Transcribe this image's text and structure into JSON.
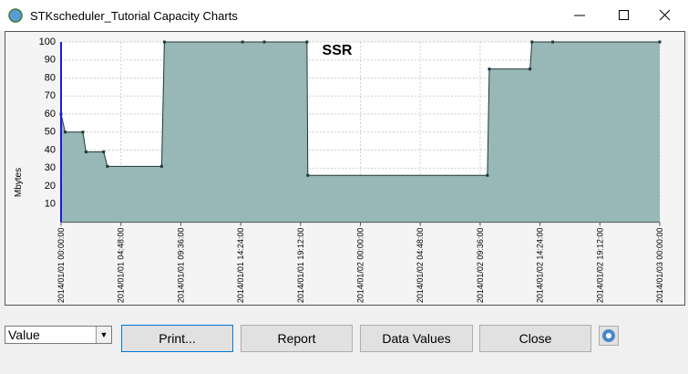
{
  "window": {
    "title": "STKscheduler_Tutorial Capacity Charts"
  },
  "chart_data": {
    "type": "area",
    "title": "SSR",
    "y_label": "Mbytes",
    "x": [
      "2014/01/01 00:00:00",
      "2014/01/01 00:20:00",
      "2014/01/01 01:45:00",
      "2014/01/01 02:00:00",
      "2014/01/01 03:25:00",
      "2014/01/01 03:43:00",
      "2014/01/01 08:04:00",
      "2014/01/01 08:17:00",
      "2014/01/01 14:33:00",
      "2014/01/01 16:18:00",
      "2014/01/01 19:43:00",
      "2014/01/01 19:47:00",
      "2014/01/02 10:11:00",
      "2014/01/02 10:20:00",
      "2014/01/02 13:36:00",
      "2014/01/02 13:45:00",
      "2014/01/02 15:25:00",
      "2014/01/03 00:00:00"
    ],
    "values": [
      60,
      50,
      50,
      39,
      39,
      31,
      31,
      100,
      100,
      100,
      100,
      26,
      26,
      85,
      85,
      100,
      100,
      100
    ],
    "color": "#97b8b6",
    "line_color": "#1e3836",
    "xlim": [
      "2014/01/01 00:00:00",
      "2014/01/03 00:00:00"
    ],
    "xticks": [
      "2014/01/01 00:00:00",
      "2014/01/01 04:48:00",
      "2014/01/01 09:36:00",
      "2014/01/01 14:24:00",
      "2014/01/01 19:12:00",
      "2014/01/02 00:00:00",
      "2014/01/02 04:48:00",
      "2014/01/02 09:36:00",
      "2014/01/02 14:24:00",
      "2014/01/02 19:12:00",
      "2014/01/03 00:00:00"
    ],
    "ylim": [
      0,
      100
    ],
    "yticks": [
      10,
      20,
      30,
      40,
      50,
      60,
      70,
      80,
      90,
      100
    ],
    "grid": true
  },
  "controls": {
    "dropdown": "Value",
    "buttons": [
      "Print...",
      "Report",
      "Data Values",
      "Close"
    ]
  }
}
